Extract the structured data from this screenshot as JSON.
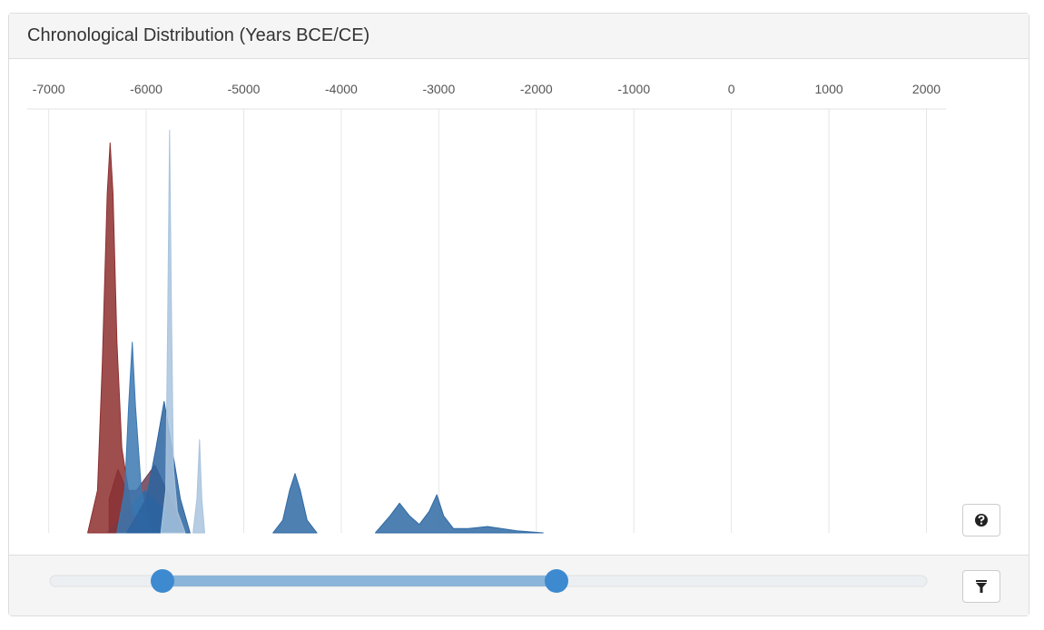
{
  "panel": {
    "title": "Chronological Distribution (Years BCE/CE)"
  },
  "chart_data": {
    "type": "area",
    "xlim": [
      -7220,
      2200
    ],
    "ylim": [
      0,
      100
    ],
    "xticks": [
      -7000,
      -6000,
      -5000,
      -4000,
      -3000,
      -2000,
      -1000,
      0,
      1000,
      2000
    ],
    "grid": true,
    "series": [
      {
        "color": "#6a3f57",
        "x": [
          -6380,
          -6290,
          -6200,
          -6100,
          -5910,
          -5750,
          -5600,
          -6500
        ],
        "values": [
          8,
          15,
          10,
          10,
          16,
          8,
          0,
          0
        ]
      },
      {
        "color": "#2f6aa5",
        "x": [
          -6400,
          -6200,
          -6012,
          -5800,
          -5600
        ],
        "values": [
          0,
          5,
          10,
          5,
          0
        ]
      },
      {
        "color": "#8e2f2f",
        "x": [
          -6600,
          -6500,
          -6450,
          -6400,
          -6370,
          -6340,
          -6300,
          -6250,
          -6150,
          -6050
        ],
        "values": [
          0,
          10,
          40,
          80,
          92,
          80,
          45,
          20,
          5,
          0
        ]
      },
      {
        "color": "#3a78b2",
        "x": [
          -6300,
          -6220,
          -6180,
          -6143,
          -6110,
          -6050,
          -5950
        ],
        "values": [
          0,
          10,
          30,
          45,
          30,
          10,
          0
        ]
      },
      {
        "color": "#2c64a0",
        "x": [
          -6200,
          -6000,
          -5900,
          -5816,
          -5750,
          -5650,
          -5550
        ],
        "values": [
          0,
          8,
          20,
          31,
          22,
          8,
          0
        ]
      },
      {
        "color": "#a9c4de",
        "x": [
          -5850,
          -5800,
          -5780,
          -5760,
          -5740,
          -5720,
          -5680,
          -5600
        ],
        "values": [
          0,
          10,
          50,
          95,
          50,
          15,
          5,
          0
        ]
      },
      {
        "color": "#a9c4de",
        "x": [
          -5520,
          -5480,
          -5453,
          -5430,
          -5400
        ],
        "values": [
          0,
          8,
          22,
          8,
          0
        ]
      },
      {
        "color": "#2f6aa5",
        "x": [
          -4700,
          -4600,
          -4530,
          -4474,
          -4420,
          -4350,
          -4250
        ],
        "values": [
          0,
          3,
          10,
          14,
          10,
          3,
          0
        ]
      },
      {
        "color": "#2f6aa5",
        "x": [
          -3650,
          -3500,
          -3403,
          -3300,
          -3200,
          -3100,
          -3020,
          -2950,
          -2850,
          -2700,
          -2500,
          -2200,
          -1930
        ],
        "values": [
          0,
          4,
          7,
          4,
          2,
          5,
          9,
          4,
          1,
          1,
          1.5,
          0.5,
          0
        ]
      }
    ]
  }
}
